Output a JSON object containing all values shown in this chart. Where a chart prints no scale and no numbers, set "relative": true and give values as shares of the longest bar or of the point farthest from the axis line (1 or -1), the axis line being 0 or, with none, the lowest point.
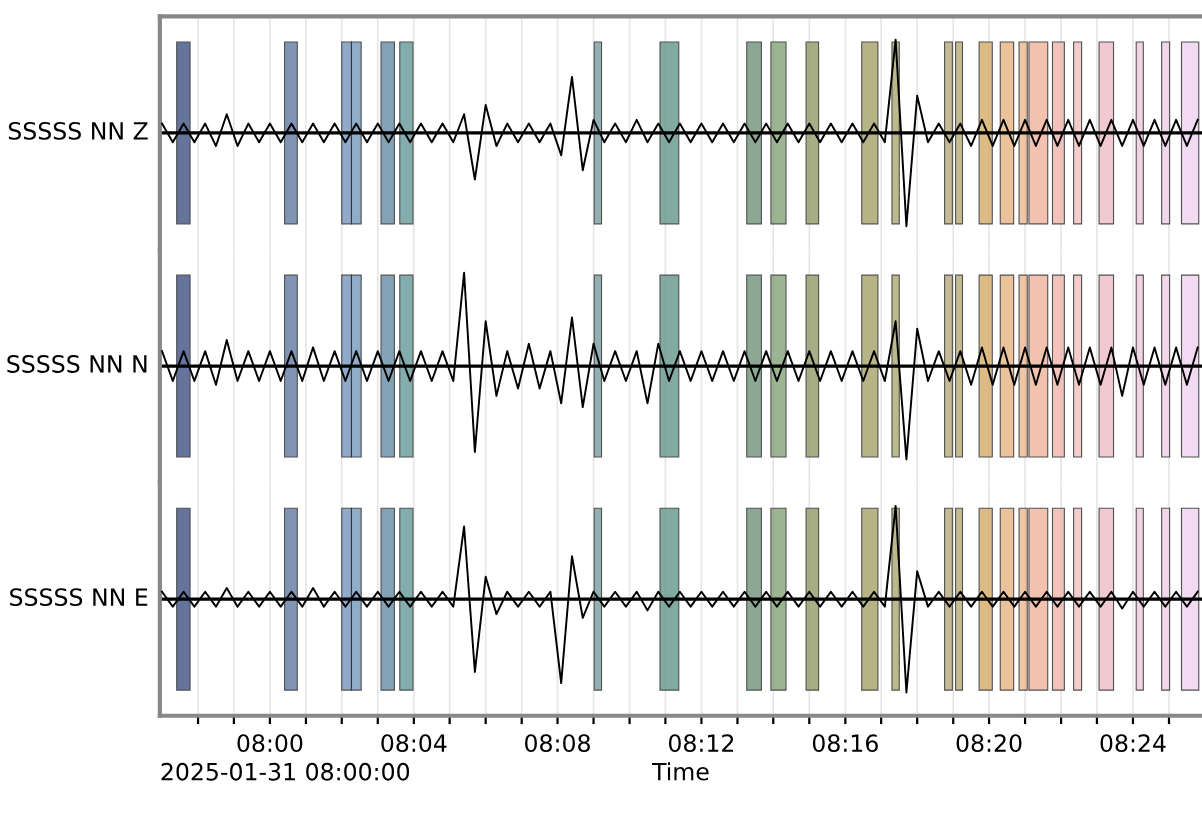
{
  "chart_data": [
    {
      "type": "line",
      "relative": true,
      "ylabel": "SSSSS NN Z",
      "tick_labels": false,
      "grid": "x",
      "x": [
        7.95,
        7.955,
        7.96,
        7.965,
        7.97,
        7.975,
        7.98,
        7.985,
        7.99,
        7.995,
        8.0,
        8.005,
        8.01,
        8.015,
        8.02,
        8.025,
        8.03,
        8.035,
        8.04,
        8.045,
        8.05,
        8.055,
        8.06,
        8.065,
        8.07,
        8.075,
        8.08,
        8.085,
        8.09,
        8.095,
        8.1,
        8.105,
        8.11,
        8.115,
        8.12,
        8.125,
        8.13,
        8.135,
        8.14,
        8.145,
        8.15,
        8.155,
        8.16,
        8.165,
        8.17,
        8.175,
        8.18,
        8.185,
        8.19,
        8.195,
        8.2,
        8.205,
        8.21,
        8.215,
        8.22,
        8.225,
        8.23,
        8.235,
        8.24,
        8.245,
        8.25,
        8.255,
        8.26,
        8.265,
        8.27,
        8.275,
        8.28,
        8.285,
        8.29,
        8.295,
        8.3,
        8.305,
        8.31,
        8.315,
        8.32,
        8.325,
        8.33,
        8.335,
        8.34,
        8.345,
        8.35,
        8.355,
        8.36,
        8.365,
        8.37,
        8.375,
        8.38,
        8.385,
        8.39,
        8.395,
        8.4,
        8.405,
        8.41,
        8.415,
        8.42,
        8.425,
        8.43
      ],
      "series": [
        {
          "color": "#000000",
          "values": [
            0.1,
            -0.1,
            0.1,
            -0.1,
            0.1,
            -0.14,
            0.2,
            -0.14,
            0.1,
            -0.1,
            0.1,
            -0.1,
            0.1,
            -0.1,
            0.1,
            -0.1,
            0.1,
            -0.1,
            0.1,
            -0.1,
            0.1,
            -0.1,
            0.1,
            -0.1,
            0.1,
            -0.1,
            0.1,
            -0.1,
            0.2,
            -0.5,
            0.3,
            -0.14,
            0.1,
            -0.1,
            0.1,
            -0.1,
            0.1,
            -0.24,
            0.6,
            -0.4,
            0.14,
            -0.1,
            0.1,
            -0.1,
            0.14,
            -0.1,
            0.1,
            -0.1,
            0.1,
            -0.1,
            0.1,
            -0.1,
            0.1,
            -0.1,
            0.1,
            -0.1,
            0.1,
            -0.1,
            0.1,
            -0.1,
            0.1,
            -0.1,
            0.1,
            -0.1,
            0.1,
            -0.1,
            0.1,
            -0.1,
            1,
            -1,
            0.4,
            -0.1,
            0.1,
            -0.1,
            0.1,
            -0.14,
            0.14,
            -0.14,
            0.14,
            -0.14,
            0.14,
            -0.14,
            0.14,
            -0.14,
            0.14,
            -0.14,
            0.14,
            -0.14,
            0.14,
            -0.14,
            0.14,
            -0.14,
            0.14,
            -0.14,
            0.14,
            -0.14,
            0.14
          ]
        }
      ],
      "xlim": [
        7.949,
        8.432
      ],
      "xticks": [
        7.9667,
        7.9833,
        8.0,
        8.0167,
        8.0333,
        8.05,
        8.0667,
        8.0833,
        8.1,
        8.1167,
        8.1333,
        8.15,
        8.1667,
        8.1833,
        8.2,
        8.2167,
        8.2333,
        8.25,
        8.2667,
        8.2833,
        8.3,
        8.3167,
        8.3333,
        8.35,
        8.3667,
        8.3833,
        8.4,
        8.4167
      ],
      "bands": [
        {
          "axis": "x",
          "from": 7.9568,
          "to": 7.963,
          "color": "#4a5c8c"
        },
        {
          "axis": "x",
          "from": 8.0068,
          "to": 8.0127,
          "color": "#6a82aa"
        },
        {
          "axis": "x",
          "from": 8.0333,
          "to": 8.0378,
          "color": "#7c9cc2"
        },
        {
          "axis": "x",
          "from": 8.0378,
          "to": 8.0423,
          "color": "#7c9ec0"
        },
        {
          "axis": "x",
          "from": 8.0515,
          "to": 8.0577,
          "color": "#6e92aa"
        },
        {
          "axis": "x",
          "from": 8.0602,
          "to": 8.0663,
          "color": "#6e9e9e"
        },
        {
          "axis": "x",
          "from": 8.1503,
          "to": 8.1537,
          "color": "#80a2a6"
        },
        {
          "axis": "x",
          "from": 8.1808,
          "to": 8.1895,
          "color": "#6c9c90"
        },
        {
          "axis": "x",
          "from": 8.221,
          "to": 8.2278,
          "color": "#7a9a80"
        },
        {
          "axis": "x",
          "from": 8.2322,
          "to": 8.2392,
          "color": "#8aa880"
        },
        {
          "axis": "x",
          "from": 8.2485,
          "to": 8.2543,
          "color": "#98a070"
        },
        {
          "axis": "x",
          "from": 8.2743,
          "to": 8.2818,
          "color": "#aaa870"
        },
        {
          "axis": "x",
          "from": 8.2883,
          "to": 8.2917,
          "color": "#b0ac78"
        },
        {
          "axis": "x",
          "from": 8.3127,
          "to": 8.3163,
          "color": "#bcb080"
        },
        {
          "axis": "x",
          "from": 8.3178,
          "to": 8.321,
          "color": "#bcb080"
        },
        {
          "axis": "x",
          "from": 8.3287,
          "to": 8.3348,
          "color": "#d8b070"
        },
        {
          "axis": "x",
          "from": 8.3385,
          "to": 8.3447,
          "color": "#e8b888"
        },
        {
          "axis": "x",
          "from": 8.3472,
          "to": 8.351,
          "color": "#ecbc98"
        },
        {
          "axis": "x",
          "from": 8.3518,
          "to": 8.3605,
          "color": "#f0b8a0"
        },
        {
          "axis": "x",
          "from": 8.3627,
          "to": 8.3682,
          "color": "#f0b8b0"
        },
        {
          "axis": "x",
          "from": 8.3725,
          "to": 8.3762,
          "color": "#f4c4c4"
        },
        {
          "axis": "x",
          "from": 8.3843,
          "to": 8.391,
          "color": "#f0c0c8"
        },
        {
          "axis": "x",
          "from": 8.4015,
          "to": 8.4048,
          "color": "#f0cce0"
        },
        {
          "axis": "x",
          "from": 8.4133,
          "to": 8.417,
          "color": "#f0d0e8"
        },
        {
          "axis": "x",
          "from": 8.4225,
          "to": 8.4305,
          "color": "#f0d4f0"
        }
      ]
    },
    {
      "type": "line",
      "relative": true,
      "ylabel": "SSSSS NN N",
      "tick_labels": false,
      "grid": "x",
      "x": [
        7.95,
        7.955,
        7.96,
        7.965,
        7.97,
        7.975,
        7.98,
        7.985,
        7.99,
        7.995,
        8.0,
        8.005,
        8.01,
        8.015,
        8.02,
        8.025,
        8.03,
        8.035,
        8.04,
        8.045,
        8.05,
        8.055,
        8.06,
        8.065,
        8.07,
        8.075,
        8.08,
        8.085,
        8.09,
        8.095,
        8.1,
        8.105,
        8.11,
        8.115,
        8.12,
        8.125,
        8.13,
        8.135,
        8.14,
        8.145,
        8.15,
        8.155,
        8.16,
        8.165,
        8.17,
        8.175,
        8.18,
        8.185,
        8.19,
        8.195,
        8.2,
        8.205,
        8.21,
        8.215,
        8.22,
        8.225,
        8.23,
        8.235,
        8.24,
        8.245,
        8.25,
        8.255,
        8.26,
        8.265,
        8.27,
        8.275,
        8.28,
        8.285,
        8.29,
        8.295,
        8.3,
        8.305,
        8.31,
        8.315,
        8.32,
        8.325,
        8.33,
        8.335,
        8.34,
        8.345,
        8.35,
        8.355,
        8.36,
        8.365,
        8.37,
        8.375,
        8.38,
        8.385,
        8.39,
        8.395,
        8.4,
        8.405,
        8.41,
        8.415,
        8.42,
        8.425,
        8.43
      ],
      "series": [
        {
          "color": "#000000",
          "values": [
            0.16,
            -0.16,
            0.16,
            -0.16,
            0.16,
            -0.2,
            0.28,
            -0.16,
            0.16,
            -0.16,
            0.16,
            -0.16,
            0.16,
            -0.16,
            0.2,
            -0.16,
            0.16,
            -0.16,
            0.16,
            -0.16,
            0.16,
            -0.16,
            0.16,
            -0.16,
            0.16,
            -0.16,
            0.16,
            -0.16,
            1,
            -0.92,
            0.48,
            -0.32,
            0.16,
            -0.24,
            0.24,
            -0.24,
            0.16,
            -0.4,
            0.52,
            -0.44,
            0.24,
            -0.16,
            0.16,
            -0.16,
            0.16,
            -0.4,
            0.24,
            -0.16,
            0.16,
            -0.16,
            0.16,
            -0.16,
            0.16,
            -0.16,
            0.16,
            -0.16,
            0.16,
            -0.16,
            0.16,
            -0.16,
            0.16,
            -0.16,
            0.16,
            -0.16,
            0.16,
            -0.16,
            0.16,
            -0.16,
            0.48,
            -1,
            0.4,
            -0.16,
            0.16,
            -0.16,
            0.16,
            -0.2,
            0.2,
            -0.2,
            0.2,
            -0.2,
            0.2,
            -0.2,
            0.2,
            -0.2,
            0.2,
            -0.2,
            0.2,
            -0.2,
            0.2,
            -0.32,
            0.2,
            -0.2,
            0.2,
            -0.2,
            0.2,
            -0.2,
            0.2
          ]
        }
      ],
      "xlim": [
        7.949,
        8.432
      ],
      "xticks": [
        7.9667,
        7.9833,
        8.0,
        8.0167,
        8.0333,
        8.05,
        8.0667,
        8.0833,
        8.1,
        8.1167,
        8.1333,
        8.15,
        8.1667,
        8.1833,
        8.2,
        8.2167,
        8.2333,
        8.25,
        8.2667,
        8.2833,
        8.3,
        8.3167,
        8.3333,
        8.35,
        8.3667,
        8.3833,
        8.4,
        8.4167
      ],
      "bands": [
        {
          "axis": "x",
          "from": 7.9568,
          "to": 7.963,
          "color": "#4a5c8c"
        },
        {
          "axis": "x",
          "from": 8.0068,
          "to": 8.0127,
          "color": "#6a82aa"
        },
        {
          "axis": "x",
          "from": 8.0333,
          "to": 8.0378,
          "color": "#7c9cc2"
        },
        {
          "axis": "x",
          "from": 8.0378,
          "to": 8.0423,
          "color": "#7c9ec0"
        },
        {
          "axis": "x",
          "from": 8.0515,
          "to": 8.0577,
          "color": "#6e92aa"
        },
        {
          "axis": "x",
          "from": 8.0602,
          "to": 8.0663,
          "color": "#6e9e9e"
        },
        {
          "axis": "x",
          "from": 8.1503,
          "to": 8.1537,
          "color": "#80a2a6"
        },
        {
          "axis": "x",
          "from": 8.1808,
          "to": 8.1895,
          "color": "#6c9c90"
        },
        {
          "axis": "x",
          "from": 8.221,
          "to": 8.2278,
          "color": "#7a9a80"
        },
        {
          "axis": "x",
          "from": 8.2322,
          "to": 8.2392,
          "color": "#8aa880"
        },
        {
          "axis": "x",
          "from": 8.2485,
          "to": 8.2543,
          "color": "#98a070"
        },
        {
          "axis": "x",
          "from": 8.2743,
          "to": 8.2818,
          "color": "#aaa870"
        },
        {
          "axis": "x",
          "from": 8.2883,
          "to": 8.2917,
          "color": "#b0ac78"
        },
        {
          "axis": "x",
          "from": 8.3127,
          "to": 8.3163,
          "color": "#bcb080"
        },
        {
          "axis": "x",
          "from": 8.3178,
          "to": 8.321,
          "color": "#bcb080"
        },
        {
          "axis": "x",
          "from": 8.3287,
          "to": 8.3348,
          "color": "#d8b070"
        },
        {
          "axis": "x",
          "from": 8.3385,
          "to": 8.3447,
          "color": "#e8b888"
        },
        {
          "axis": "x",
          "from": 8.3472,
          "to": 8.351,
          "color": "#ecbc98"
        },
        {
          "axis": "x",
          "from": 8.3518,
          "to": 8.3605,
          "color": "#f0b8a0"
        },
        {
          "axis": "x",
          "from": 8.3627,
          "to": 8.3682,
          "color": "#f0b8b0"
        },
        {
          "axis": "x",
          "from": 8.3725,
          "to": 8.3762,
          "color": "#f4c4c4"
        },
        {
          "axis": "x",
          "from": 8.3843,
          "to": 8.391,
          "color": "#f0c0c8"
        },
        {
          "axis": "x",
          "from": 8.4015,
          "to": 8.4048,
          "color": "#f0cce0"
        },
        {
          "axis": "x",
          "from": 8.4133,
          "to": 8.417,
          "color": "#f0d0e8"
        },
        {
          "axis": "x",
          "from": 8.4225,
          "to": 8.4305,
          "color": "#f0d4f0"
        }
      ]
    },
    {
      "type": "line",
      "relative": true,
      "ylabel": "SSSSS NN E",
      "xlabel": "Time",
      "tick_labels": "x",
      "grid": "x",
      "annotations": [
        "2025-01-31 08:00:00"
      ],
      "x": [
        7.95,
        7.955,
        7.96,
        7.965,
        7.97,
        7.975,
        7.98,
        7.985,
        7.99,
        7.995,
        8.0,
        8.005,
        8.01,
        8.015,
        8.02,
        8.025,
        8.03,
        8.035,
        8.04,
        8.045,
        8.05,
        8.055,
        8.06,
        8.065,
        8.07,
        8.075,
        8.08,
        8.085,
        8.09,
        8.095,
        8.1,
        8.105,
        8.11,
        8.115,
        8.12,
        8.125,
        8.13,
        8.135,
        8.14,
        8.145,
        8.15,
        8.155,
        8.16,
        8.165,
        8.17,
        8.175,
        8.18,
        8.185,
        8.19,
        8.195,
        8.2,
        8.205,
        8.21,
        8.215,
        8.22,
        8.225,
        8.23,
        8.235,
        8.24,
        8.245,
        8.25,
        8.255,
        8.26,
        8.265,
        8.27,
        8.275,
        8.28,
        8.285,
        8.29,
        8.295,
        8.3,
        8.305,
        8.31,
        8.315,
        8.32,
        8.325,
        8.33,
        8.335,
        8.34,
        8.345,
        8.35,
        8.355,
        8.36,
        8.365,
        8.37,
        8.375,
        8.38,
        8.385,
        8.39,
        8.395,
        8.4,
        8.405,
        8.41,
        8.415,
        8.42,
        8.425,
        8.43
      ],
      "series": [
        {
          "color": "#000000",
          "values": [
            0.08,
            -0.08,
            0.08,
            -0.08,
            0.08,
            -0.08,
            0.12,
            -0.08,
            0.08,
            -0.08,
            0.08,
            -0.08,
            0.08,
            -0.08,
            0.12,
            -0.08,
            0.08,
            -0.08,
            0.08,
            -0.08,
            0.08,
            -0.08,
            0.08,
            -0.08,
            0.08,
            -0.08,
            0.08,
            -0.08,
            0.78,
            -0.78,
            0.24,
            -0.16,
            0.08,
            -0.08,
            0.08,
            -0.08,
            0.08,
            -0.9,
            0.46,
            -0.2,
            0.08,
            -0.08,
            0.08,
            -0.08,
            0.08,
            -0.12,
            0.08,
            -0.08,
            0.08,
            -0.08,
            0.08,
            -0.08,
            0.08,
            -0.08,
            0.08,
            -0.08,
            0.08,
            -0.08,
            0.08,
            -0.08,
            0.08,
            -0.08,
            0.08,
            -0.08,
            0.08,
            -0.08,
            0.08,
            -0.08,
            1,
            -1,
            0.3,
            -0.08,
            0.08,
            -0.08,
            0.08,
            -0.08,
            0.08,
            -0.08,
            0.08,
            -0.08,
            0.08,
            -0.08,
            0.08,
            -0.08,
            0.08,
            -0.08,
            0.08,
            -0.08,
            0.08,
            -0.1,
            0.08,
            -0.08,
            0.08,
            -0.08,
            0.08,
            -0.08,
            0.08
          ]
        }
      ],
      "xlim": [
        7.949,
        8.432
      ],
      "xticks": [
        {
          "value": 7.9667,
          "label": null
        },
        {
          "value": 7.9833,
          "label": null
        },
        {
          "value": 8.0,
          "label": "08:00"
        },
        {
          "value": 8.0167,
          "label": null
        },
        {
          "value": 8.0333,
          "label": null
        },
        {
          "value": 8.05,
          "label": null
        },
        {
          "value": 8.0667,
          "label": "08:04"
        },
        {
          "value": 8.0833,
          "label": null
        },
        {
          "value": 8.1,
          "label": null
        },
        {
          "value": 8.1167,
          "label": null
        },
        {
          "value": 8.1333,
          "label": "08:08"
        },
        {
          "value": 8.15,
          "label": null
        },
        {
          "value": 8.1667,
          "label": null
        },
        {
          "value": 8.1833,
          "label": null
        },
        {
          "value": 8.2,
          "label": "08:12"
        },
        {
          "value": 8.2167,
          "label": null
        },
        {
          "value": 8.2333,
          "label": null
        },
        {
          "value": 8.25,
          "label": null
        },
        {
          "value": 8.2667,
          "label": "08:16"
        },
        {
          "value": 8.2833,
          "label": null
        },
        {
          "value": 8.3,
          "label": null
        },
        {
          "value": 8.3167,
          "label": null
        },
        {
          "value": 8.3333,
          "label": "08:20"
        },
        {
          "value": 8.35,
          "label": null
        },
        {
          "value": 8.3667,
          "label": null
        },
        {
          "value": 8.3833,
          "label": null
        },
        {
          "value": 8.4,
          "label": "08:24"
        },
        {
          "value": 8.4167,
          "label": null
        }
      ],
      "bands": [
        {
          "axis": "x",
          "from": 7.9568,
          "to": 7.963,
          "color": "#4a5c8c"
        },
        {
          "axis": "x",
          "from": 8.0068,
          "to": 8.0127,
          "color": "#6a82aa"
        },
        {
          "axis": "x",
          "from": 8.0333,
          "to": 8.0378,
          "color": "#7c9cc2"
        },
        {
          "axis": "x",
          "from": 8.0378,
          "to": 8.0423,
          "color": "#7c9ec0"
        },
        {
          "axis": "x",
          "from": 8.0515,
          "to": 8.0577,
          "color": "#6e92aa"
        },
        {
          "axis": "x",
          "from": 8.0602,
          "to": 8.0663,
          "color": "#6e9e9e"
        },
        {
          "axis": "x",
          "from": 8.1503,
          "to": 8.1537,
          "color": "#80a2a6"
        },
        {
          "axis": "x",
          "from": 8.1808,
          "to": 8.1895,
          "color": "#6c9c90"
        },
        {
          "axis": "x",
          "from": 8.221,
          "to": 8.2278,
          "color": "#7a9a80"
        },
        {
          "axis": "x",
          "from": 8.2322,
          "to": 8.2392,
          "color": "#8aa880"
        },
        {
          "axis": "x",
          "from": 8.2485,
          "to": 8.2543,
          "color": "#98a070"
        },
        {
          "axis": "x",
          "from": 8.2743,
          "to": 8.2818,
          "color": "#aaa870"
        },
        {
          "axis": "x",
          "from": 8.2883,
          "to": 8.2917,
          "color": "#b0ac78"
        },
        {
          "axis": "x",
          "from": 8.3127,
          "to": 8.3163,
          "color": "#bcb080"
        },
        {
          "axis": "x",
          "from": 8.3178,
          "to": 8.321,
          "color": "#bcb080"
        },
        {
          "axis": "x",
          "from": 8.3287,
          "to": 8.3348,
          "color": "#d8b070"
        },
        {
          "axis": "x",
          "from": 8.3385,
          "to": 8.3447,
          "color": "#e8b888"
        },
        {
          "axis": "x",
          "from": 8.3472,
          "to": 8.351,
          "color": "#ecbc98"
        },
        {
          "axis": "x",
          "from": 8.3518,
          "to": 8.3605,
          "color": "#f0b8a0"
        },
        {
          "axis": "x",
          "from": 8.3627,
          "to": 8.3682,
          "color": "#f0b8b0"
        },
        {
          "axis": "x",
          "from": 8.3725,
          "to": 8.3762,
          "color": "#f4c4c4"
        },
        {
          "axis": "x",
          "from": 8.3843,
          "to": 8.391,
          "color": "#f0c0c8"
        },
        {
          "axis": "x",
          "from": 8.4015,
          "to": 8.4048,
          "color": "#f0cce0"
        },
        {
          "axis": "x",
          "from": 8.4133,
          "to": 8.417,
          "color": "#f0d0e8"
        },
        {
          "axis": "x",
          "from": 8.4225,
          "to": 8.4305,
          "color": "#f0d4f0"
        }
      ]
    }
  ]
}
